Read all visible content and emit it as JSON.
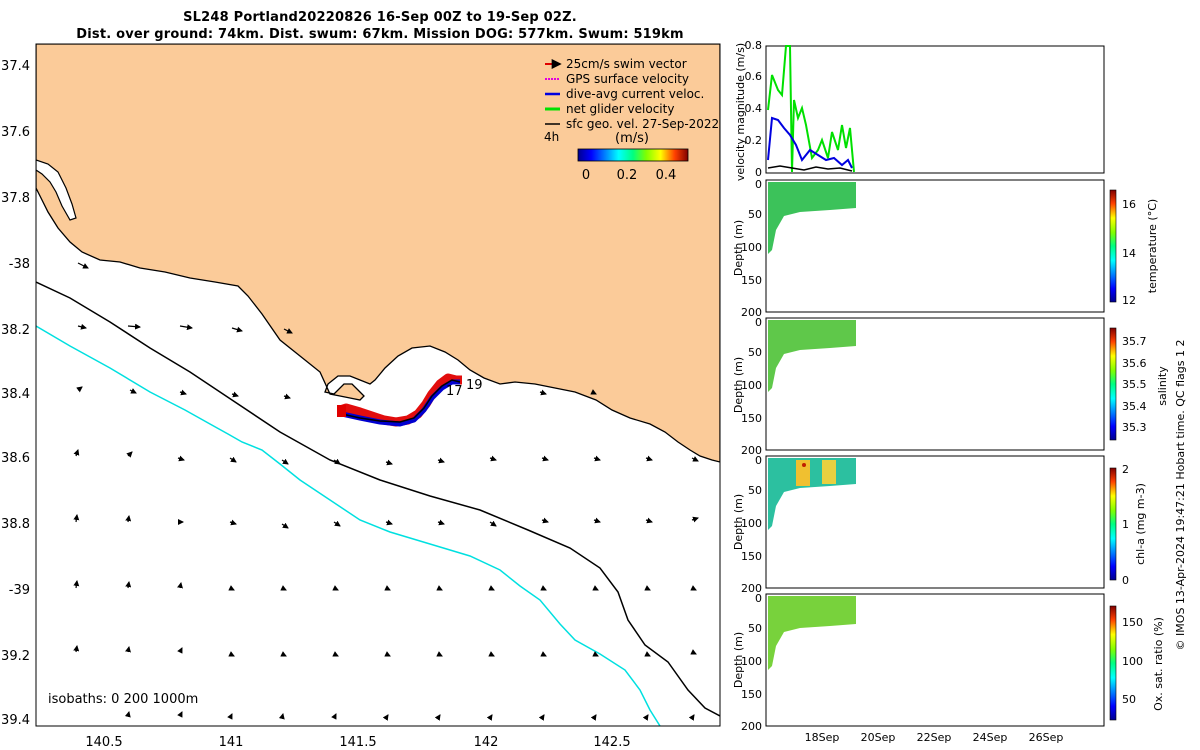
{
  "title": {
    "line1": "SL248 Portland20220826 16-Sep 00Z to 19-Sep 02Z.",
    "line2": "Dist. over ground: 74km. Dist. swum: 67km. Mission DOG: 577km. Swum: 519km"
  },
  "map": {
    "lat_ticks": [
      "37.4",
      "37.6",
      "37.8",
      "-38",
      "38.2",
      "38.4",
      "38.6",
      "38.8",
      "-39",
      "39.2",
      "39.4"
    ],
    "lon_ticks": [
      "140.5",
      "141",
      "141.5",
      "142",
      "142.5"
    ],
    "isobaths_label": "isobaths: 0   200  1000m",
    "track_labels": [
      "17",
      "19"
    ],
    "legend": {
      "items": [
        {
          "label": "25cm/s swim vector",
          "color": "#e00000"
        },
        {
          "label": "GPS surface velocity",
          "color": "#e000e0"
        },
        {
          "label": "dive-avg current veloc.",
          "color": "#0000e0"
        },
        {
          "label": "net glider velocity",
          "color": "#00e000"
        },
        {
          "label": "sfc geo. vel. 27-Sep-2022",
          "color": "#000000"
        }
      ],
      "time_label": "4h",
      "colorbar_title": "(m/s)",
      "colorbar_ticks": [
        "0",
        "0.2",
        "0.4"
      ]
    },
    "colors": {
      "land": "#fbcb99",
      "sea": "#ffffff",
      "isobath_200": "#00e0e0",
      "isobath_1000": "#000000"
    }
  },
  "right_panels": {
    "velocity": {
      "ylabel": "velocity magnitude (m/s)",
      "yticks": [
        "0",
        "0.2",
        "0.4",
        "0.6",
        "0.8"
      ]
    },
    "depth_ylabel": "Depth (m)",
    "depth_ticks": [
      "0",
      "50",
      "100",
      "150",
      "200"
    ],
    "temperature": {
      "label": "temperature (°C)",
      "ticks": [
        "12",
        "14",
        "16"
      ]
    },
    "salinity": {
      "label": "salinity",
      "ticks": [
        "35.3",
        "35.4",
        "35.5",
        "35.6",
        "35.7"
      ]
    },
    "chla": {
      "label": "chl-a (mg m-3)",
      "ticks": [
        "0",
        "1",
        "2"
      ]
    },
    "oxygen": {
      "label": "Ox. sat. ratio (%)",
      "ticks": [
        "50",
        "100",
        "150"
      ]
    },
    "xticks": [
      "18Sep",
      "20Sep",
      "22Sep",
      "24Sep",
      "26Sep"
    ],
    "footer": "© IMOS 13-Apr-2024 19:47:21 Hobart time. QC flags 1  2"
  }
}
